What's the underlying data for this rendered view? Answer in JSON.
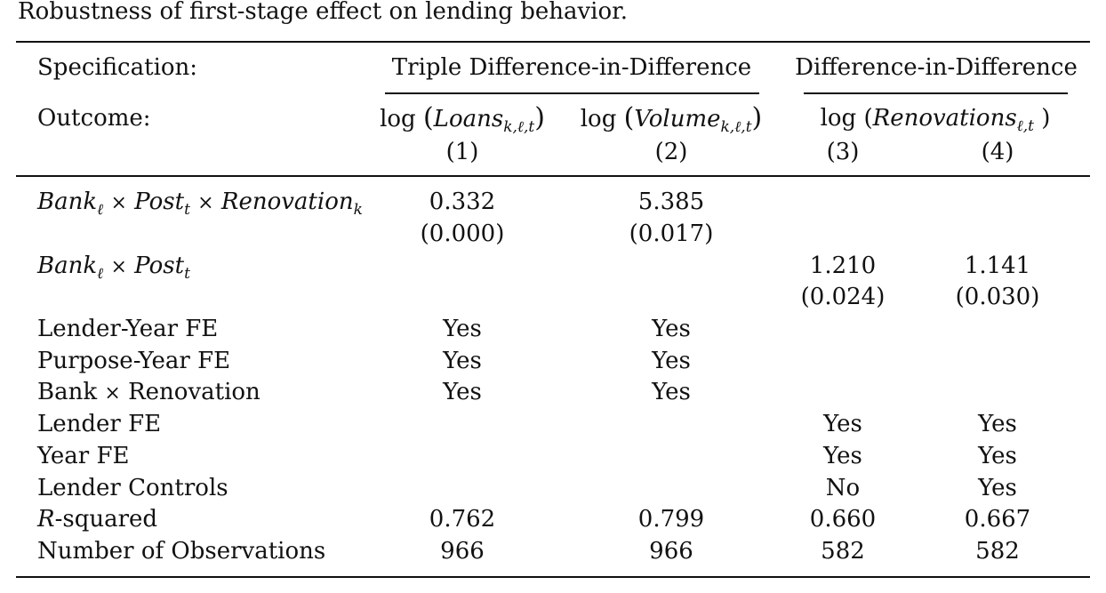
{
  "caption": "Robustness of first-stage effect on lending behavior.",
  "header": {
    "specification_label": "Specification:",
    "outcome_label": "Outcome:",
    "groups": [
      {
        "label": "Triple Difference-in-Difference"
      },
      {
        "label": "Difference-in-Difference"
      }
    ],
    "outcomes": {
      "log": "log",
      "loans": {
        "base": "Loans",
        "sub": "k,ℓ,t"
      },
      "volume": {
        "base": "Volume",
        "sub": "k,ℓ,t"
      },
      "renovations": {
        "base": "Renovations",
        "sub": "ℓ,t"
      }
    },
    "column_numbers": [
      "(1)",
      "(2)",
      "(3)",
      "(4)"
    ]
  },
  "rows": {
    "triple_interaction": {
      "label_parts": {
        "bank": "Bank",
        "bank_sub": "ℓ",
        "times": "×",
        "post": "Post",
        "post_sub": "t",
        "renovation": "Renovation",
        "renovation_sub": "k"
      },
      "values": [
        "0.332",
        "5.385",
        "",
        ""
      ],
      "pvalues": [
        "(0.000)",
        "(0.017)",
        "",
        ""
      ]
    },
    "double_interaction": {
      "label_parts": {
        "bank": "Bank",
        "bank_sub": "ℓ",
        "times": "×",
        "post": "Post",
        "post_sub": "t"
      },
      "values": [
        "",
        "",
        "1.210",
        "1.141"
      ],
      "pvalues": [
        "",
        "",
        "(0.024)",
        "(0.030)"
      ]
    },
    "lender_year_fe": {
      "label": "Lender-Year FE",
      "values": [
        "Yes",
        "Yes",
        "",
        ""
      ]
    },
    "purpose_year_fe": {
      "label": "Purpose-Year FE",
      "values": [
        "Yes",
        "Yes",
        "",
        ""
      ]
    },
    "bank_renovation": {
      "label_parts": {
        "bank": "Bank",
        "times": "×",
        "renovation": "Renovation"
      },
      "values": [
        "Yes",
        "Yes",
        "",
        ""
      ]
    },
    "lender_fe": {
      "label": "Lender FE",
      "values": [
        "",
        "",
        "Yes",
        "Yes"
      ]
    },
    "year_fe": {
      "label": "Year FE",
      "values": [
        "",
        "",
        "Yes",
        "Yes"
      ]
    },
    "lender_controls": {
      "label": "Lender Controls",
      "values": [
        "",
        "",
        "No",
        "Yes"
      ]
    },
    "r_squared": {
      "label_italic": "R",
      "label_rest": "-squared",
      "values": [
        "0.762",
        "0.799",
        "0.660",
        "0.667"
      ]
    },
    "observations": {
      "label": "Number of Observations",
      "values": [
        "966",
        "966",
        "582",
        "582"
      ]
    }
  }
}
